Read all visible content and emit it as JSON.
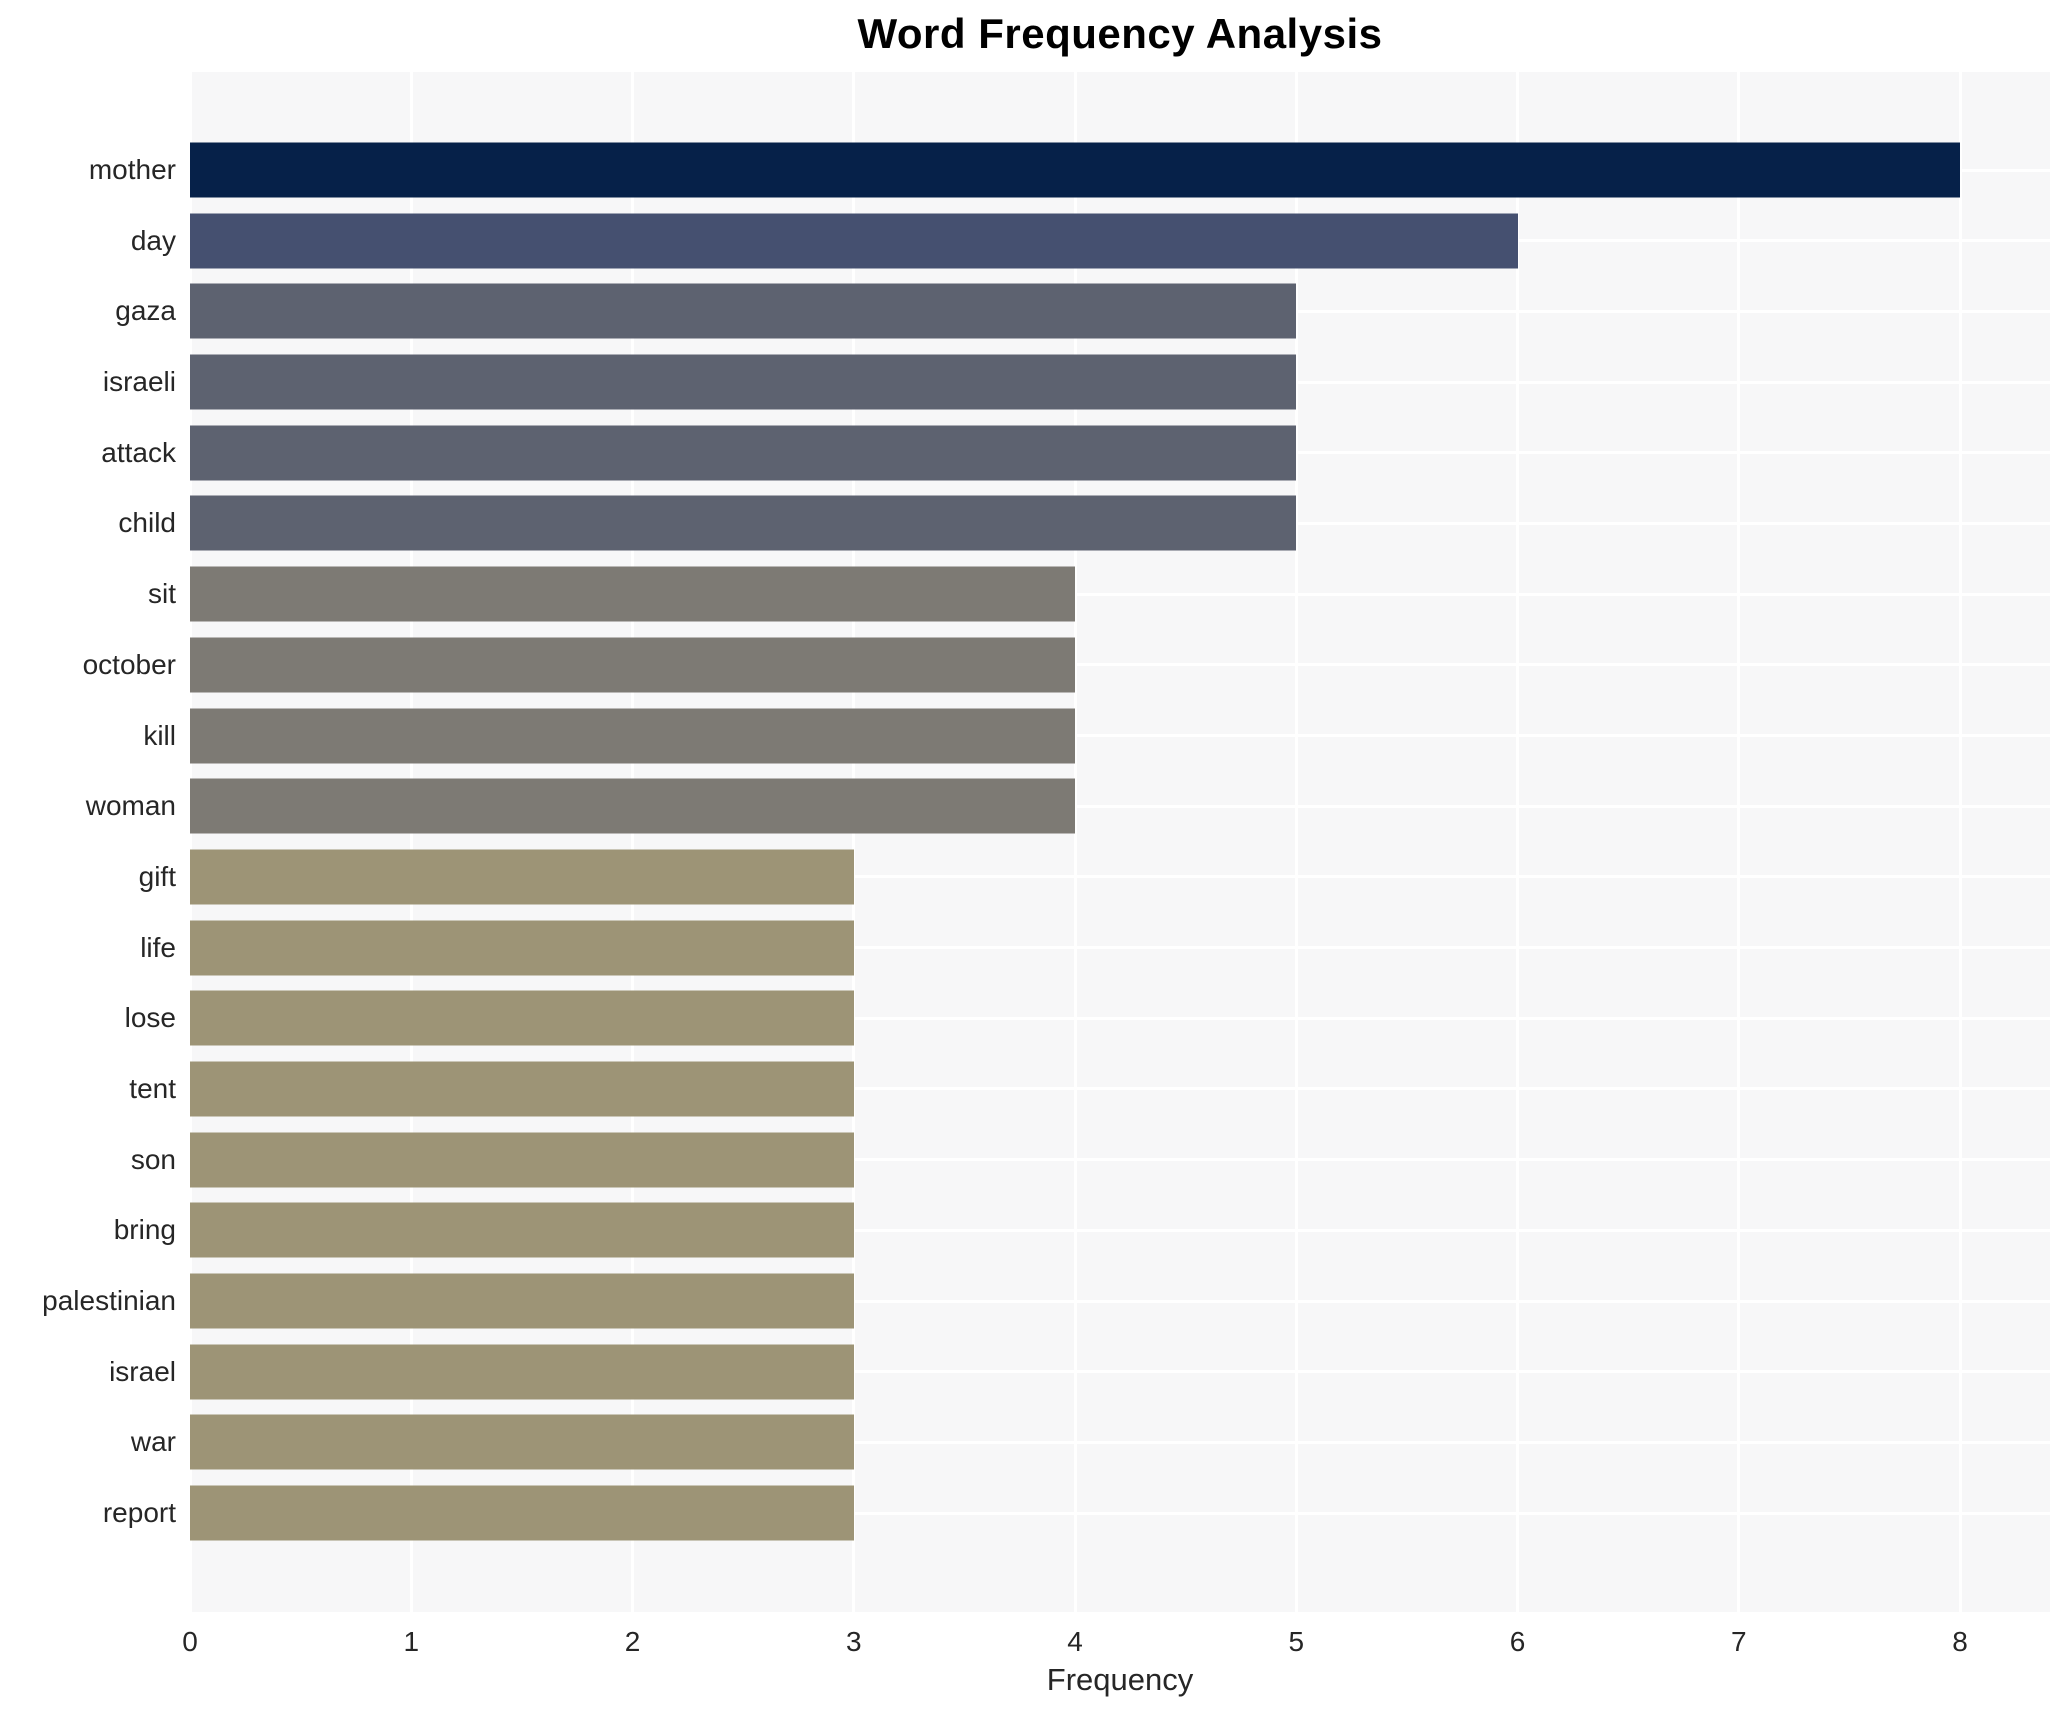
{
  "chart_data": {
    "type": "bar",
    "orientation": "horizontal",
    "title": "Word Frequency Analysis",
    "xlabel": "Frequency",
    "ylabel": "",
    "xlim": [
      0,
      8
    ],
    "xticks": [
      0,
      1,
      2,
      3,
      4,
      5,
      6,
      7,
      8
    ],
    "grid": "both-axes white gridlines on light gray panel",
    "legend": "none",
    "colors": {
      "panel_background": "#f7f7f8",
      "gridline": "#ffffff",
      "title_text": "#000000",
      "axis_text": "#262626",
      "value_8_bar": "#062149",
      "value_6_bar": "#455070",
      "value_5_bar": "#5d6270",
      "value_4_bar": "#7d7a74",
      "value_3_bar": "#9d9476"
    },
    "categories": [
      "mother",
      "day",
      "gaza",
      "israeli",
      "attack",
      "child",
      "sit",
      "october",
      "kill",
      "woman",
      "gift",
      "life",
      "lose",
      "tent",
      "son",
      "bring",
      "palestinian",
      "israel",
      "war",
      "report"
    ],
    "values": [
      8,
      6,
      5,
      5,
      5,
      5,
      4,
      4,
      4,
      4,
      3,
      3,
      3,
      3,
      3,
      3,
      3,
      3,
      3,
      3
    ],
    "bar_colors": [
      "#062149",
      "#455070",
      "#5d6270",
      "#5d6270",
      "#5d6270",
      "#5d6270",
      "#7d7a74",
      "#7d7a74",
      "#7d7a74",
      "#7d7a74",
      "#9d9476",
      "#9d9476",
      "#9d9476",
      "#9d9476",
      "#9d9476",
      "#9d9476",
      "#9d9476",
      "#9d9476",
      "#9d9476",
      "#9d9476"
    ]
  }
}
